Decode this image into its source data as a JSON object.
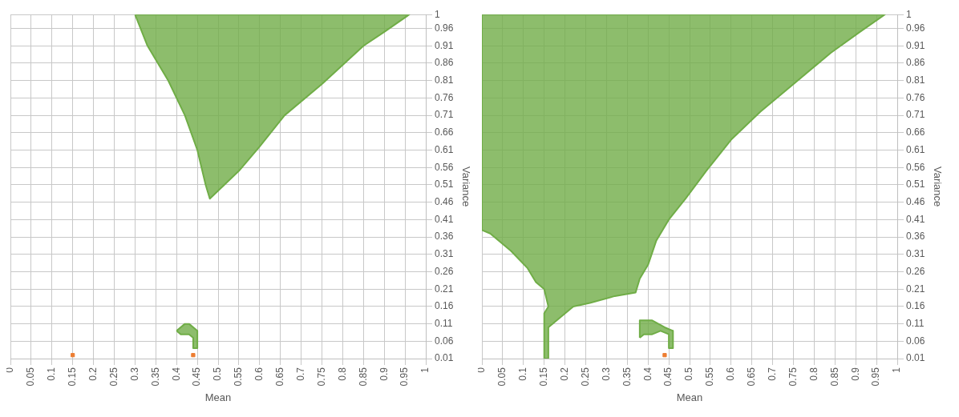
{
  "chart_data": [
    {
      "type": "area",
      "xlabel": "Mean",
      "ylabel": "Variance",
      "xlim": [
        0,
        1
      ],
      "ylim": [
        0.01,
        1
      ],
      "xticks": [
        0,
        0.05,
        0.1,
        0.15,
        0.2,
        0.25,
        0.3,
        0.35,
        0.4,
        0.45,
        0.5,
        0.55,
        0.6,
        0.65,
        0.7,
        0.75,
        0.8,
        0.85,
        0.9,
        0.95,
        1
      ],
      "yticks": [
        0.01,
        0.06,
        0.11,
        0.16,
        0.21,
        0.26,
        0.31,
        0.36,
        0.41,
        0.46,
        0.51,
        0.56,
        0.61,
        0.66,
        0.71,
        0.76,
        0.81,
        0.86,
        0.91,
        0.96,
        1
      ],
      "grid": true,
      "legend": false,
      "series": [
        {
          "color": "#70ad47",
          "x": [
            0.3,
            0.33,
            0.38,
            0.42,
            0.45,
            0.46,
            0.47,
            0.48,
            0.55,
            0.6,
            0.66,
            0.75,
            0.85,
            0.9,
            0.96,
            0.3
          ],
          "values": [
            1,
            0.91,
            0.81,
            0.71,
            0.61,
            0.56,
            0.51,
            0.47,
            0.55,
            0.62,
            0.71,
            0.8,
            0.91,
            0.95,
            1,
            1
          ]
        },
        {
          "color": "#70ad47",
          "x": [
            0.4,
            0.42,
            0.43,
            0.45,
            0.45,
            0.44,
            0.44,
            0.43,
            0.41,
            0.4
          ],
          "values": [
            0.09,
            0.11,
            0.11,
            0.09,
            0.04,
            0.04,
            0.07,
            0.08,
            0.08,
            0.09
          ]
        },
        {
          "type": "scatter",
          "color": "#ed7d31",
          "x": [
            0.15,
            0.44
          ],
          "values": [
            0.02,
            0.02
          ]
        }
      ]
    },
    {
      "type": "area",
      "xlabel": "Mean",
      "ylabel": "Variance",
      "xlim": [
        0,
        1
      ],
      "ylim": [
        0.01,
        1
      ],
      "xticks": [
        0,
        0.05,
        0.1,
        0.15,
        0.2,
        0.25,
        0.3,
        0.35,
        0.4,
        0.45,
        0.5,
        0.55,
        0.6,
        0.65,
        0.7,
        0.75,
        0.8,
        0.85,
        0.9,
        0.95,
        1
      ],
      "yticks": [
        0.01,
        0.06,
        0.11,
        0.16,
        0.21,
        0.26,
        0.31,
        0.36,
        0.41,
        0.46,
        0.51,
        0.56,
        0.61,
        0.66,
        0.71,
        0.76,
        0.81,
        0.86,
        0.91,
        0.96,
        1
      ],
      "grid": true,
      "legend": false,
      "series": [
        {
          "color": "#70ad47",
          "x": [
            0,
            0,
            0.02,
            0.07,
            0.11,
            0.13,
            0.15,
            0.16,
            0.15,
            0.15,
            0.16,
            0.16,
            0.22,
            0.26,
            0.32,
            0.37,
            0.38,
            0.4,
            0.42,
            0.45,
            0.49,
            0.54,
            0.6,
            0.67,
            0.76,
            0.84,
            0.91,
            0.97,
            0
          ],
          "values": [
            1,
            0.38,
            0.37,
            0.32,
            0.27,
            0.23,
            0.21,
            0.16,
            0.14,
            0.01,
            0.01,
            0.1,
            0.16,
            0.17,
            0.19,
            0.2,
            0.24,
            0.28,
            0.35,
            0.41,
            0.47,
            0.55,
            0.64,
            0.72,
            0.81,
            0.89,
            0.95,
            1,
            1
          ]
        },
        {
          "color": "#70ad47",
          "x": [
            0.38,
            0.38,
            0.41,
            0.44,
            0.46,
            0.46,
            0.45,
            0.45,
            0.43,
            0.41,
            0.39,
            0.38
          ],
          "values": [
            0.07,
            0.12,
            0.12,
            0.1,
            0.09,
            0.04,
            0.04,
            0.08,
            0.09,
            0.08,
            0.08,
            0.07
          ]
        },
        {
          "type": "scatter",
          "color": "#ed7d31",
          "x": [
            0.44
          ],
          "values": [
            0.02
          ]
        }
      ]
    }
  ]
}
